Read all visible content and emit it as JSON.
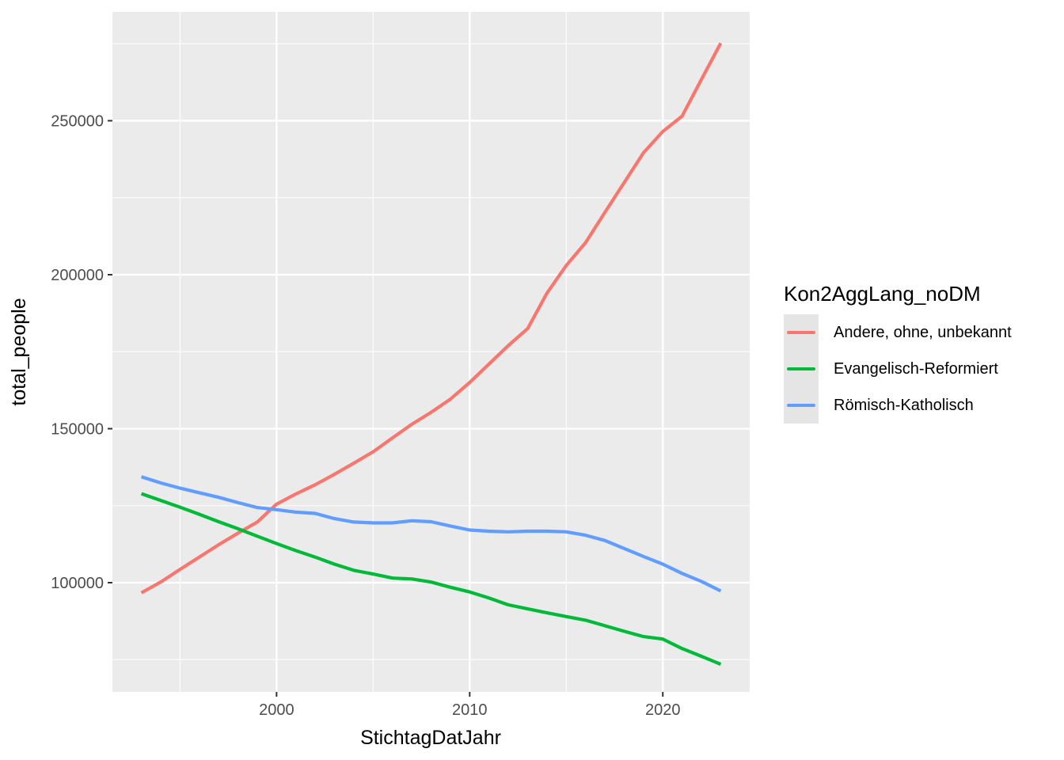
{
  "figure": {
    "background": "#FFFFFF",
    "panel_background": "#EBEBEB",
    "grid_color": "#FFFFFF",
    "tick_mark_color": "#333333",
    "axis_text_color": "#4D4D4D",
    "title_text_color": "#000000"
  },
  "legend": {
    "title": "Kon2AggLang_noDM",
    "position": "right"
  },
  "chart_data": {
    "type": "line",
    "title": "",
    "xlabel": "StichtagDatJahr",
    "ylabel": "total_people",
    "grid": true,
    "legend_position": "right",
    "xlim": [
      1991.5,
      2024.5
    ],
    "ylim": [
      64520,
      285350
    ],
    "x_ticks": {
      "values": [
        2000,
        2010,
        2020
      ],
      "labels": [
        "2000",
        "2010",
        "2020"
      ]
    },
    "x_minor": [
      1995,
      2005,
      2015
    ],
    "y_ticks": {
      "values": [
        100000,
        150000,
        200000,
        250000
      ],
      "labels": [
        "100000",
        "150000",
        "200000",
        "250000"
      ]
    },
    "y_minor": [
      75000,
      125000,
      175000,
      225000,
      275000
    ],
    "x": [
      1993,
      1994,
      1995,
      1996,
      1997,
      1998,
      1999,
      2000,
      2001,
      2002,
      2003,
      2004,
      2005,
      2006,
      2007,
      2008,
      2009,
      2010,
      2011,
      2012,
      2013,
      2014,
      2015,
      2016,
      2017,
      2018,
      2019,
      2020,
      2021,
      2022,
      2023
    ],
    "series": [
      {
        "name": "Andere, ohne, unbekannt",
        "color": "#F8766D",
        "values": [
          96700,
          100200,
          104300,
          108300,
          112300,
          116100,
          119700,
          125500,
          128800,
          131800,
          135200,
          138800,
          142500,
          147000,
          151400,
          155300,
          159600,
          165000,
          171000,
          177000,
          182500,
          194000,
          203000,
          210400,
          220200,
          229900,
          239600,
          246500,
          251500,
          263400,
          275200
        ]
      },
      {
        "name": "Evangelisch-Reformiert",
        "color": "#00BA38",
        "values": [
          128900,
          126700,
          124500,
          122200,
          119800,
          117500,
          115100,
          112700,
          110400,
          108300,
          106000,
          104000,
          102800,
          101500,
          101200,
          100200,
          98500,
          97000,
          95000,
          92800,
          91500,
          90200,
          89000,
          87800,
          86000,
          84200,
          82500,
          81700,
          78600,
          76100,
          73500
        ]
      },
      {
        "name": "Römisch-Katholisch",
        "color": "#619CFF",
        "values": [
          134400,
          132400,
          130700,
          129200,
          127700,
          126000,
          124400,
          123700,
          122900,
          122500,
          120800,
          119700,
          119400,
          119400,
          120100,
          119800,
          118400,
          117100,
          116700,
          116500,
          116700,
          116700,
          116500,
          115400,
          113700,
          111100,
          108500,
          106000,
          103000,
          100400,
          97300
        ]
      }
    ]
  }
}
